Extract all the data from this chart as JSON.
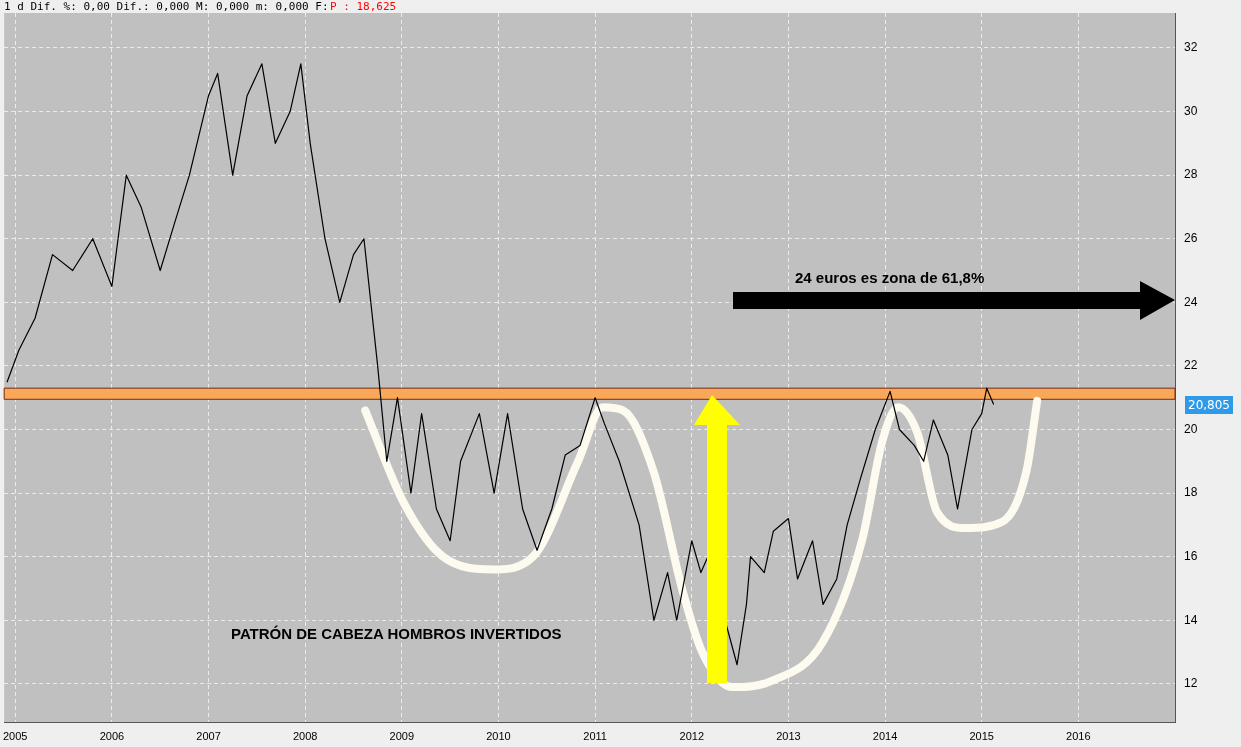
{
  "chart_data": {
    "type": "line",
    "xlim": [
      "2004-11-20",
      "2017-01-01"
    ],
    "xticks": [
      "2005",
      "2006",
      "2007",
      "2008",
      "2009",
      "2010",
      "2011",
      "2012",
      "2013",
      "2014",
      "2015",
      "2016"
    ],
    "ylim": [
      10.8,
      33.1
    ],
    "yticks": [
      12,
      14,
      16,
      18,
      20,
      22,
      24,
      26,
      28,
      30,
      32
    ],
    "grid": true,
    "legend": false,
    "marker": "none",
    "line_style": "solid",
    "x": [
      "2004-12-01",
      "2005-01-15",
      "2005-03-15",
      "2005-05-20",
      "2005-08-05",
      "2005-10-20",
      "2006-01-01",
      "2006-02-25",
      "2006-04-20",
      "2006-07-01",
      "2006-08-25",
      "2006-10-20",
      "2007-01-01",
      "2007-02-05",
      "2007-04-01",
      "2007-05-25",
      "2007-07-20",
      "2007-09-10",
      "2007-11-05",
      "2007-12-15",
      "2008-01-20",
      "2008-03-15",
      "2008-05-10",
      "2008-07-01",
      "2008-08-10",
      "2008-10-01",
      "2008-11-05",
      "2008-12-15",
      "2009-02-05",
      "2009-03-15",
      "2009-05-10",
      "2009-07-01",
      "2009-08-10",
      "2009-10-20",
      "2009-12-15",
      "2010-02-05",
      "2010-04-01",
      "2010-05-25",
      "2010-07-20",
      "2010-09-10",
      "2010-11-05",
      "2011-01-01",
      "2011-02-05",
      "2011-04-01",
      "2011-06-15",
      "2011-08-10",
      "2011-10-01",
      "2011-11-05",
      "2012-01-01",
      "2012-02-05",
      "2012-03-01",
      "2012-06-20",
      "2012-07-25",
      "2012-08-10",
      "2012-10-01",
      "2012-11-05",
      "2013-01-01",
      "2013-02-05",
      "2013-04-01",
      "2013-05-10",
      "2013-07-01",
      "2013-08-10",
      "2013-10-01",
      "2013-11-25",
      "2014-01-20",
      "2014-02-25",
      "2014-04-20",
      "2014-05-25",
      "2014-07-01",
      "2014-08-25",
      "2014-10-01",
      "2014-11-25",
      "2015-01-01",
      "2015-01-20",
      "2015-02-15"
    ],
    "series": [
      {
        "color": "#000000",
        "values": [
          21.5,
          22.5,
          23.5,
          25.5,
          25,
          26,
          24.5,
          28,
          27,
          25,
          26.5,
          28,
          30.5,
          31.2,
          28,
          30.5,
          31.5,
          29,
          30,
          31.5,
          29,
          26,
          24,
          25.5,
          26,
          22,
          19,
          21,
          18,
          20.5,
          17.5,
          16.5,
          19,
          20.5,
          18,
          20.5,
          17.5,
          16.2,
          17.5,
          19.2,
          19.5,
          21,
          20.2,
          19,
          17,
          14,
          15.5,
          14,
          16.5,
          15.5,
          16,
          12.6,
          14.5,
          16,
          15.5,
          16.8,
          17.2,
          15.3,
          16.5,
          14.5,
          15.3,
          17,
          18.5,
          20,
          21.2,
          20,
          19.5,
          19,
          20.3,
          19.2,
          17.5,
          20,
          20.5,
          21.3,
          20.8
        ]
      },
      {
        "type": "line",
        "color": "#fdfbef",
        "x": [
          "2008-08-15",
          "2009-01-08",
          "2009-06-05",
          "2009-12-15",
          "2010-05-10",
          "2010-10-28",
          "2011-01-30",
          "2011-04-15",
          "2011-08-08",
          "2011-11-28",
          "2012-02-10",
          "2012-06-01",
          "2012-11-01",
          "2013-05-08",
          "2013-10-05",
          "2013-12-20",
          "2014-02-20",
          "2014-05-01",
          "2014-07-15",
          "2014-11-01",
          "2015-03-18",
          "2015-06-18",
          "2015-07-28"
        ],
        "values": [
          20.6,
          17.7,
          16.0,
          15.6,
          16.0,
          19.0,
          20.7,
          20.6,
          18.7,
          14.9,
          13.0,
          11.9,
          12.1,
          13.3,
          16.5,
          19.6,
          20.7,
          19.9,
          17.4,
          16.9,
          17.1,
          18.7,
          20.9
        ]
      }
    ],
    "bands": [
      {
        "axis": "y",
        "from": 20.95,
        "to": 21.3,
        "color": "#f9a85a"
      }
    ],
    "annotations": [
      "1 d Dif. %: 0,00 Dif.: 0,000 M: 0,000 m: 0,000 F:",
      "P : 18,625",
      "24 euros es zona de 61,8%",
      "PATRÓN DE CABEZA HOMBROS INVERTIDOS",
      "20,805"
    ]
  }
}
